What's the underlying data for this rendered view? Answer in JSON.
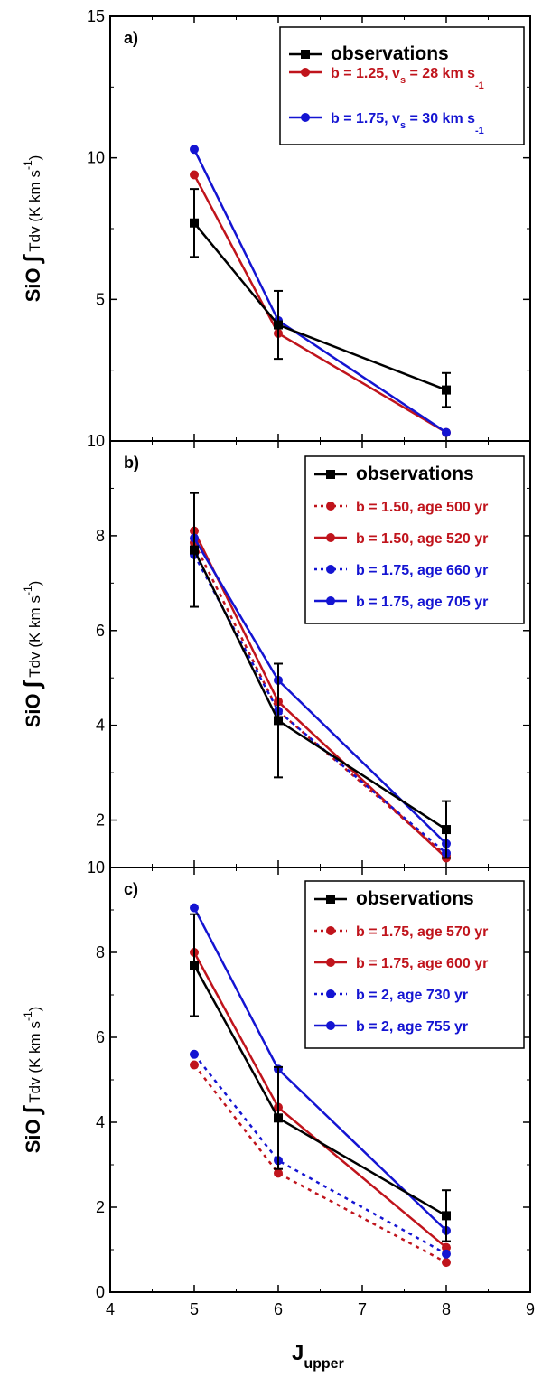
{
  "chart_data": [
    {
      "type": "line",
      "panel_label": "a)",
      "xlabel": "J",
      "xlabel_sub": "upper",
      "ylabel": "SiO",
      "ylabel_integral": "∫",
      "ylabel_rest": " Tdv",
      "ylabel_units": " (K km s",
      "ylabel_units_exp": "-1",
      "ylabel_units_close": ")",
      "xlim": [
        4,
        9
      ],
      "ylim": [
        0,
        15
      ],
      "xticks": [
        4,
        5,
        6,
        7,
        8,
        9
      ],
      "yticks": [
        5,
        10,
        15
      ],
      "ytick_labels": [
        "5",
        "10",
        "15"
      ],
      "x": [
        5,
        6,
        8
      ],
      "series": [
        {
          "name": "observations",
          "color": "#000000",
          "dashed": false,
          "marker": "square",
          "values": [
            7.7,
            4.1,
            1.8
          ],
          "errors": [
            1.2,
            1.2,
            0.6
          ]
        },
        {
          "name": "b = 1.25, v",
          "name_sub": "s",
          "name_rest": " = 28 km s",
          "name_exp": "-1",
          "color": "#c0141c",
          "dashed": false,
          "marker": "circle",
          "values": [
            9.4,
            3.8,
            0.3
          ]
        },
        {
          "name": "b = 1.75, v",
          "name_sub": "s",
          "name_rest": " = 30 km s",
          "name_exp": "-1",
          "color": "#1414d2",
          "dashed": false,
          "marker": "circle",
          "values": [
            10.3,
            4.25,
            0.3
          ]
        }
      ]
    },
    {
      "type": "line",
      "panel_label": "b)",
      "ylabel": "SiO",
      "ylabel_integral": "∫",
      "ylabel_rest": " Tdv",
      "ylabel_units": " (K km s",
      "ylabel_units_exp": "-1",
      "ylabel_units_close": ")",
      "xlim": [
        4,
        9
      ],
      "ylim": [
        1,
        10
      ],
      "xticks": [
        4,
        5,
        6,
        7,
        8,
        9
      ],
      "yticks": [
        2,
        4,
        6,
        8,
        10
      ],
      "ytick_labels": [
        "2",
        "4",
        "6",
        "8",
        "10"
      ],
      "x": [
        5,
        6,
        8
      ],
      "series": [
        {
          "name": "observations",
          "color": "#000000",
          "dashed": false,
          "marker": "square",
          "values": [
            7.7,
            4.1,
            1.8
          ],
          "errors": [
            1.2,
            1.2,
            0.6
          ]
        },
        {
          "name": "b = 1.50, age 500 yr",
          "color": "#c0141c",
          "dashed": true,
          "marker": "circle",
          "values": [
            7.85,
            4.3,
            1.25
          ]
        },
        {
          "name": "b = 1.50, age 520 yr",
          "color": "#c0141c",
          "dashed": false,
          "marker": "circle",
          "values": [
            8.1,
            4.5,
            1.2
          ]
        },
        {
          "name": "b = 1.75, age 660 yr",
          "color": "#1414d2",
          "dashed": true,
          "marker": "circle",
          "values": [
            7.6,
            4.3,
            1.3
          ]
        },
        {
          "name": "b = 1.75, age 705 yr",
          "color": "#1414d2",
          "dashed": false,
          "marker": "circle",
          "values": [
            7.95,
            4.95,
            1.5
          ]
        }
      ]
    },
    {
      "type": "line",
      "panel_label": "c)",
      "ylabel": "SiO",
      "ylabel_integral": "∫",
      "ylabel_rest": " Tdv",
      "ylabel_units": " (K km s",
      "ylabel_units_exp": "-1",
      "ylabel_units_close": ")",
      "xlim": [
        4,
        9
      ],
      "ylim": [
        0,
        10
      ],
      "xticks": [
        4,
        5,
        6,
        7,
        8,
        9
      ],
      "xtick_labels": [
        "4",
        "5",
        "6",
        "7",
        "8",
        "9"
      ],
      "yticks": [
        0,
        2,
        4,
        6,
        8,
        10
      ],
      "ytick_labels": [
        "0",
        "2",
        "4",
        "6",
        "8",
        "10"
      ],
      "x": [
        5,
        6,
        8
      ],
      "series": [
        {
          "name": "observations",
          "color": "#000000",
          "dashed": false,
          "marker": "square",
          "values": [
            7.7,
            4.1,
            1.8
          ],
          "errors": [
            1.2,
            1.2,
            0.6
          ]
        },
        {
          "name": "b = 1.75, age 570 yr",
          "color": "#c0141c",
          "dashed": true,
          "marker": "circle",
          "values": [
            5.35,
            2.8,
            0.7
          ]
        },
        {
          "name": "b = 1.75, age 600 yr",
          "color": "#c0141c",
          "dashed": false,
          "marker": "circle",
          "values": [
            8.0,
            4.35,
            1.05
          ]
        },
        {
          "name": "b = 2, age 730 yr",
          "color": "#1414d2",
          "dashed": true,
          "marker": "circle",
          "values": [
            5.6,
            3.1,
            0.9
          ]
        },
        {
          "name": "b = 2, age 755 yr",
          "color": "#1414d2",
          "dashed": false,
          "marker": "circle",
          "values": [
            9.05,
            5.25,
            1.45
          ]
        }
      ]
    }
  ]
}
